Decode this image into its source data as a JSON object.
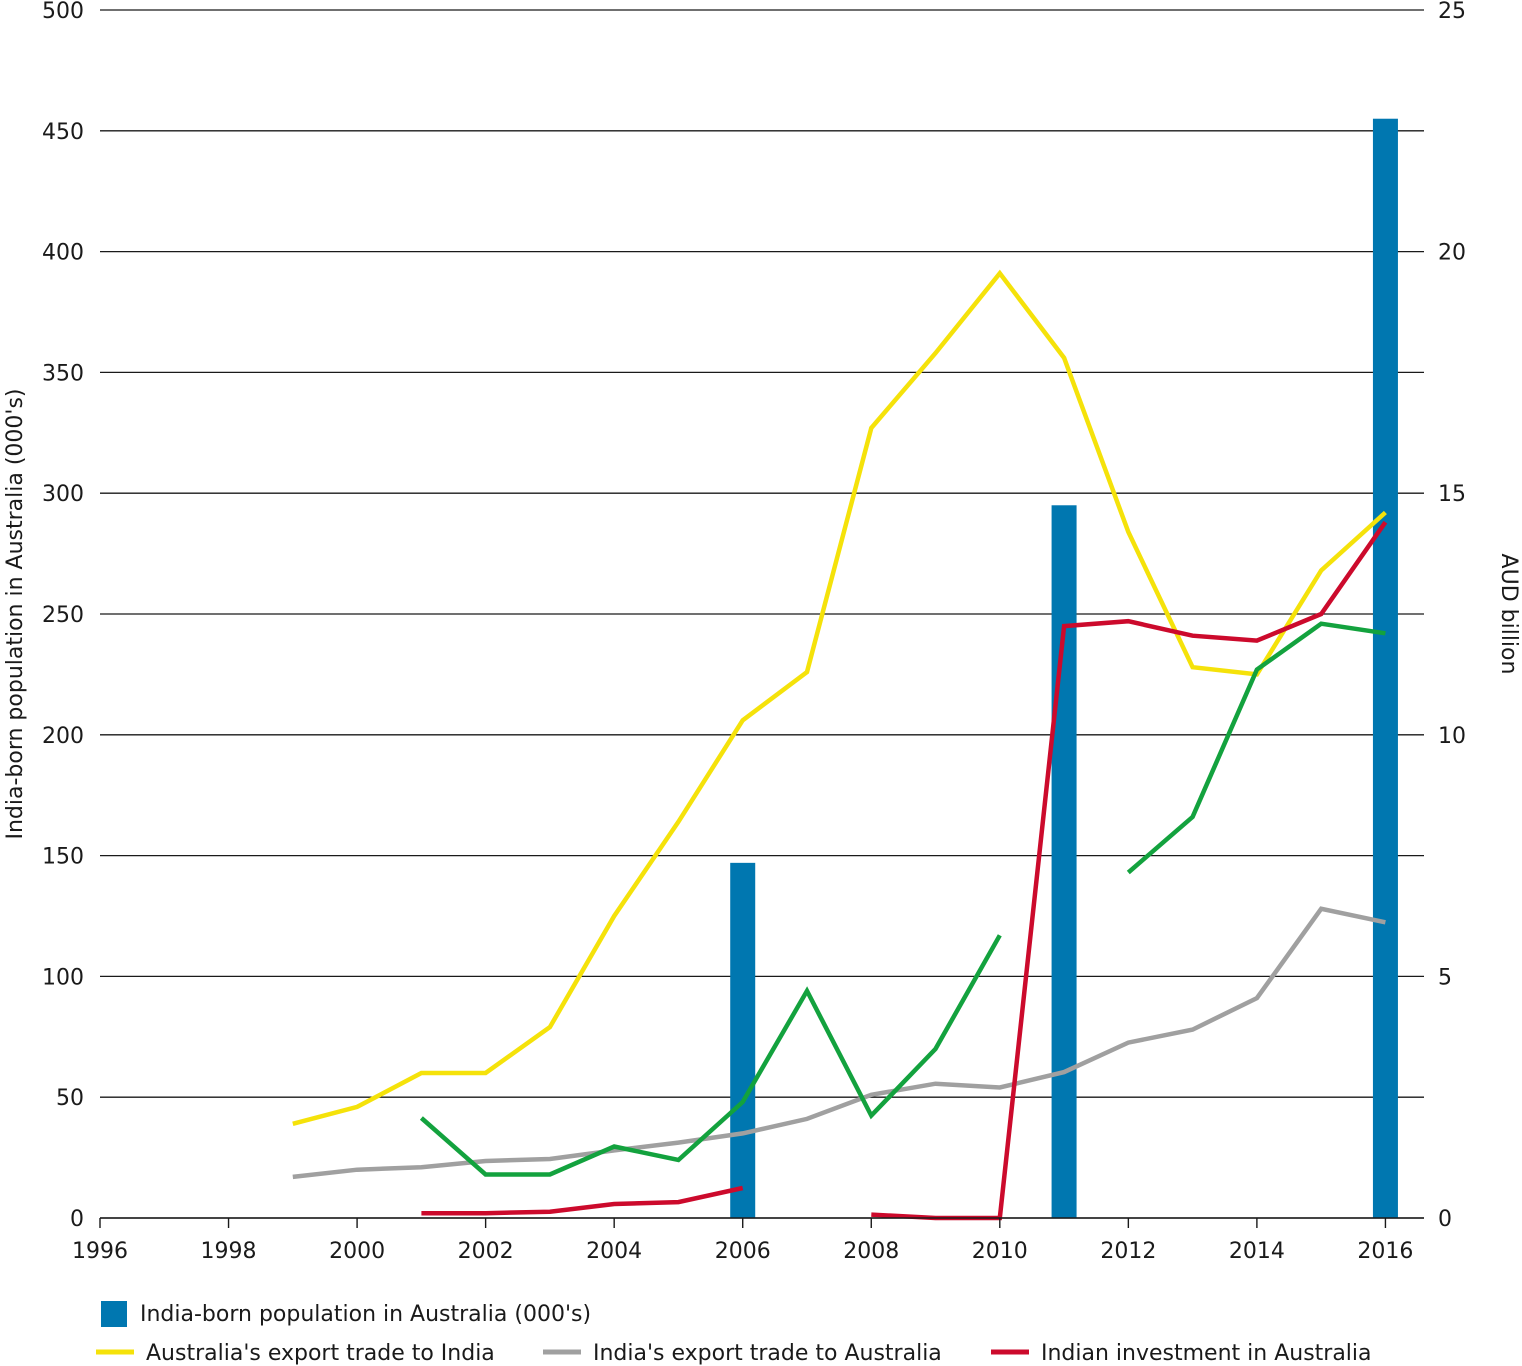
{
  "chart_data": {
    "type": "bar+line",
    "x": [
      1996,
      1997,
      1998,
      1999,
      2000,
      2001,
      2002,
      2003,
      2004,
      2005,
      2006,
      2007,
      2008,
      2009,
      2010,
      2011,
      2012,
      2013,
      2014,
      2015,
      2016
    ],
    "x_ticks": [
      "1996",
      "1998",
      "2000",
      "2002",
      "2004",
      "2006",
      "2008",
      "2010",
      "2012",
      "2014",
      "2016"
    ],
    "x_tick_values": [
      1996,
      1998,
      2000,
      2002,
      2004,
      2006,
      2008,
      2010,
      2012,
      2014,
      2016
    ],
    "xlim": [
      1996,
      2016.6
    ],
    "y_left": {
      "label": "India-born population in Australia (000's)",
      "ylim": [
        0,
        500
      ],
      "ticks": [
        "0",
        "50",
        "100",
        "150",
        "200",
        "250",
        "300",
        "350",
        "400",
        "450",
        "500"
      ],
      "tick_values": [
        0,
        50,
        100,
        150,
        200,
        250,
        300,
        350,
        400,
        450,
        500
      ]
    },
    "y_right": {
      "label": "AUD billion",
      "ylim": [
        0,
        25
      ],
      "ticks": [
        "0",
        "5",
        "10",
        "15",
        "20",
        "25"
      ],
      "tick_values": [
        0,
        5,
        10,
        15,
        20,
        25
      ]
    },
    "bars": {
      "name": "India-born population in Australia (000's)",
      "color": "#0077b0",
      "axis": "left",
      "x": [
        2006,
        2011,
        2016
      ],
      "values": [
        147,
        295,
        455
      ]
    },
    "series": [
      {
        "name": "Australia's export trade to India",
        "color": "#f5e20a",
        "axis": "right",
        "segments": [
          [
            [
              1999,
              1.95
            ],
            [
              2000,
              2.3
            ],
            [
              2001,
              3.0
            ],
            [
              2002,
              3.0
            ],
            [
              2003,
              3.95
            ],
            [
              2004,
              6.25
            ],
            [
              2005,
              8.2
            ],
            [
              2006,
              10.3
            ],
            [
              2007,
              11.3
            ],
            [
              2008,
              16.35
            ],
            [
              2009,
              17.9
            ],
            [
              2010,
              19.55
            ],
            [
              2011,
              17.8
            ],
            [
              2012,
              14.2
            ],
            [
              2013,
              11.4
            ],
            [
              2014,
              11.25
            ],
            [
              2015,
              13.4
            ],
            [
              2016,
              14.6
            ]
          ]
        ]
      },
      {
        "name": "India's export trade to Australia",
        "color": "#a0a0a0",
        "axis": "right",
        "segments": [
          [
            [
              1999,
              0.85
            ],
            [
              2000,
              1.0
            ],
            [
              2001,
              1.05
            ],
            [
              2002,
              1.18
            ],
            [
              2003,
              1.22
            ],
            [
              2004,
              1.4
            ],
            [
              2005,
              1.56
            ],
            [
              2006,
              1.75
            ],
            [
              2007,
              2.05
            ],
            [
              2008,
              2.55
            ],
            [
              2009,
              2.78
            ],
            [
              2010,
              2.7
            ],
            [
              2011,
              3.02
            ],
            [
              2012,
              3.63
            ],
            [
              2013,
              3.9
            ],
            [
              2014,
              4.55
            ],
            [
              2015,
              6.4
            ],
            [
              2016,
              6.12
            ]
          ]
        ]
      },
      {
        "name": "Green series (unlabeled)",
        "color": "#13a23e",
        "axis": "right",
        "segments": [
          [
            [
              2001,
              2.07
            ],
            [
              2002,
              0.9
            ],
            [
              2003,
              0.9
            ],
            [
              2004,
              1.48
            ],
            [
              2005,
              1.2
            ],
            [
              2006,
              2.4
            ],
            [
              2007,
              4.7
            ],
            [
              2008,
              2.12
            ],
            [
              2009,
              3.5
            ],
            [
              2010,
              5.85
            ]
          ],
          [
            [
              2012,
              7.15
            ],
            [
              2013,
              8.3
            ],
            [
              2014,
              11.35
            ],
            [
              2015,
              12.3
            ],
            [
              2016,
              12.1
            ]
          ]
        ]
      },
      {
        "name": "Indian investment in Australia",
        "color": "#cc0a2c",
        "axis": "right",
        "segments": [
          [
            [
              2001,
              0.1
            ],
            [
              2002,
              0.1
            ],
            [
              2003,
              0.13
            ],
            [
              2004,
              0.29
            ],
            [
              2005,
              0.33
            ],
            [
              2006,
              0.62
            ]
          ],
          [
            [
              2008,
              0.07
            ],
            [
              2009,
              0.0
            ],
            [
              2010,
              0.0
            ],
            [
              2011,
              12.25
            ],
            [
              2012,
              12.35
            ],
            [
              2013,
              12.05
            ],
            [
              2014,
              11.95
            ],
            [
              2015,
              12.5
            ],
            [
              2016,
              14.4
            ]
          ]
        ]
      }
    ],
    "legend": {
      "placement": "bottom-left",
      "entries": [
        {
          "label": "India-born population in Australia (000's)",
          "color": "#0077b0",
          "kind": "bar"
        },
        {
          "label": "Australia's export trade to India",
          "color": "#f5e20a",
          "kind": "line"
        },
        {
          "label": "India's export trade to Australia",
          "color": "#a0a0a0",
          "kind": "line"
        },
        {
          "label": "Indian investment in Australia",
          "color": "#cc0a2c",
          "kind": "line"
        }
      ]
    },
    "gridlines": "horizontal"
  }
}
